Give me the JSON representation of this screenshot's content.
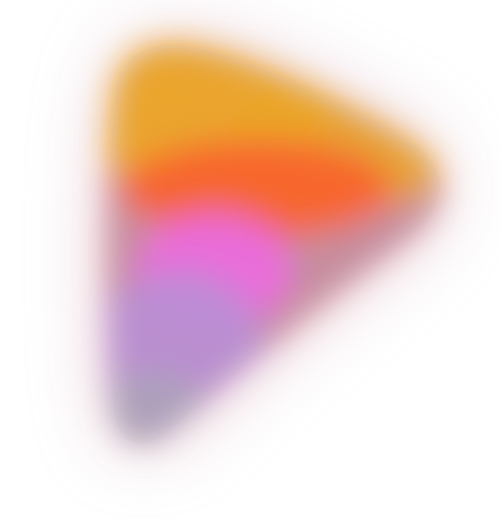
{
  "background_color": "#ffffff",
  "shape": "rounded-triangle-gradient-blob",
  "colors": {
    "amber": "#f0a21a",
    "orange": "#ff5a1f",
    "pink": "#f062e0",
    "lavender": "#b88ad8",
    "mauve": "#a8a0b8"
  },
  "effects": {
    "blur": true,
    "grain_noise": true
  }
}
